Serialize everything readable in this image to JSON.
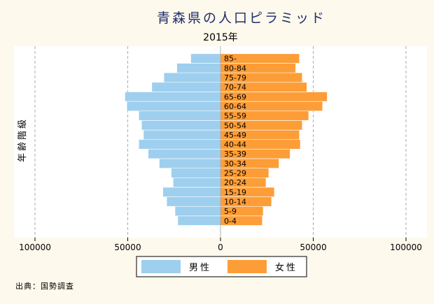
{
  "chart_data": {
    "type": "bar",
    "orientation": "horizontal",
    "title": "青森県の人口ピラミッド",
    "subtitle": "2015年",
    "ylabel": "年齢階級",
    "xlim": [
      -100000,
      100000
    ],
    "x_ticks": [
      -100000,
      -50000,
      0,
      50000,
      100000
    ],
    "x_tick_labels": [
      "100000",
      "50000",
      "0",
      "50000",
      "100000"
    ],
    "grid": true,
    "legend_position": "bottom",
    "categories": [
      "0-4",
      "5-9",
      "10-14",
      "15-19",
      "20-24",
      "25-29",
      "30-34",
      "35-39",
      "40-44",
      "45-49",
      "50-54",
      "55-59",
      "60-64",
      "65-69",
      "70-74",
      "75-79",
      "80-84",
      "85-"
    ],
    "series": [
      {
        "name": "男性",
        "color": "#9ecfee",
        "values": [
          23000,
          24500,
          29000,
          31000,
          25500,
          26500,
          33000,
          39000,
          44000,
          41500,
          42500,
          44000,
          50500,
          51500,
          37000,
          30500,
          23500,
          16000
        ]
      },
      {
        "name": "女性",
        "color": "#fd9d37",
        "values": [
          22500,
          23000,
          27500,
          29000,
          24500,
          26000,
          31500,
          37500,
          43000,
          42500,
          44000,
          47500,
          55000,
          57500,
          46500,
          44000,
          40500,
          42500
        ]
      }
    ],
    "source_note": "出典：国勢調査"
  }
}
